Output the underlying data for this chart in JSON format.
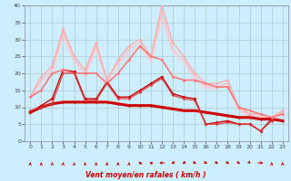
{
  "xlabel": "Vent moyen/en rafales ( km/h )",
  "xlabel_color": "#cc0000",
  "background_color": "#cceeff",
  "grid_color": "#aacccc",
  "xlim": [
    -0.5,
    23.5
  ],
  "ylim": [
    0,
    40
  ],
  "yticks": [
    0,
    5,
    10,
    15,
    20,
    25,
    30,
    35,
    40
  ],
  "xticks": [
    0,
    1,
    2,
    3,
    4,
    5,
    6,
    7,
    8,
    9,
    10,
    11,
    12,
    13,
    14,
    15,
    16,
    17,
    18,
    19,
    20,
    21,
    22,
    23
  ],
  "lines": [
    {
      "x": [
        0,
        1,
        2,
        3,
        4,
        5,
        6,
        7,
        8,
        9,
        10,
        11,
        12,
        13,
        14,
        15,
        16,
        17,
        18,
        19,
        20,
        21,
        22
      ],
      "y": [
        8.5,
        10.5,
        12.5,
        21,
        20.5,
        12.5,
        12.5,
        17.5,
        13,
        13,
        15,
        17,
        19,
        14,
        13,
        12.5,
        5,
        5.5,
        6,
        5,
        5,
        3,
        6.5
      ],
      "color": "#cc0000",
      "lw": 1.0,
      "marker": "D",
      "ms": 2.0,
      "alpha": 1.0
    },
    {
      "x": [
        0,
        1,
        2,
        3,
        4,
        5,
        6,
        7,
        8,
        9,
        10,
        11,
        12,
        13,
        14,
        15,
        16,
        17,
        18,
        19,
        20,
        21,
        22,
        23
      ],
      "y": [
        8.5,
        10.0,
        11.0,
        11.5,
        11.5,
        11.5,
        11.5,
        11.5,
        11.0,
        10.5,
        10.5,
        10.5,
        10.0,
        9.5,
        9.0,
        9.0,
        8.5,
        8.0,
        7.5,
        7.0,
        7.0,
        6.5,
        6.5,
        6.0
      ],
      "color": "#cc0000",
      "lw": 2.2,
      "marker": "D",
      "ms": 1.5,
      "alpha": 1.0
    },
    {
      "x": [
        0,
        1,
        2,
        3,
        4,
        5,
        6,
        7,
        8,
        9,
        10,
        11,
        12,
        13,
        14,
        15,
        16,
        17,
        18,
        19,
        20,
        21,
        22,
        23
      ],
      "y": [
        13,
        19,
        22,
        33,
        25,
        21,
        29,
        18,
        24,
        28,
        30,
        25,
        40,
        29,
        25,
        20,
        17,
        17,
        18,
        10,
        8,
        8,
        7,
        9
      ],
      "color": "#ffaaaa",
      "lw": 1.0,
      "marker": "D",
      "ms": 1.8,
      "alpha": 1.0
    },
    {
      "x": [
        0,
        1,
        2,
        3,
        4,
        5,
        6,
        7,
        8,
        9,
        10,
        11,
        12,
        13,
        14,
        15,
        16,
        17,
        18,
        19,
        20,
        21,
        22,
        23
      ],
      "y": [
        13,
        18,
        21,
        32,
        24,
        20,
        28,
        18,
        23,
        27,
        29,
        24,
        38,
        27,
        24,
        19,
        16,
        16,
        17,
        9.5,
        7.5,
        7.5,
        6.5,
        8.5
      ],
      "color": "#ffbbbb",
      "lw": 1.0,
      "marker": null,
      "ms": 0,
      "alpha": 0.85
    },
    {
      "x": [
        0,
        1,
        2,
        3,
        4,
        5,
        6,
        7,
        8,
        9,
        10,
        11,
        12,
        13,
        14,
        15,
        16,
        17,
        18,
        19,
        20,
        21,
        22,
        23
      ],
      "y": [
        13,
        17,
        20,
        31,
        23,
        19,
        27,
        17,
        22,
        26,
        28,
        23,
        36,
        26,
        23,
        18,
        15.5,
        15.5,
        16.5,
        9,
        7,
        7,
        6,
        8
      ],
      "color": "#ffcccc",
      "lw": 1.0,
      "marker": null,
      "ms": 0,
      "alpha": 0.75
    },
    {
      "x": [
        0,
        1,
        2,
        3,
        4,
        5,
        6,
        7,
        8,
        9,
        10,
        11,
        12,
        13,
        14,
        15,
        16,
        17,
        18,
        19,
        20,
        21,
        22,
        23
      ],
      "y": [
        13,
        15,
        20,
        21,
        20,
        20,
        20,
        17,
        20,
        24,
        28,
        25,
        24,
        19,
        18,
        18,
        17,
        16,
        16,
        10,
        9,
        8,
        7,
        8
      ],
      "color": "#ff7777",
      "lw": 1.1,
      "marker": "D",
      "ms": 1.8,
      "alpha": 1.0
    },
    {
      "x": [
        0,
        1,
        2,
        3,
        4,
        5,
        6,
        7,
        8,
        9,
        10,
        11,
        12,
        13,
        14,
        15,
        16,
        17,
        18,
        19,
        20,
        21,
        22,
        23
      ],
      "y": [
        13,
        15,
        20,
        21,
        20,
        20,
        20,
        17,
        20,
        24,
        28,
        25,
        24,
        19,
        18,
        18,
        17,
        16,
        16,
        10,
        9,
        8,
        7,
        8
      ],
      "color": "#ff9999",
      "lw": 1.0,
      "marker": null,
      "ms": 0,
      "alpha": 0.6
    },
    {
      "x": [
        0,
        1,
        2,
        3,
        4,
        5,
        6,
        7,
        8,
        9,
        10,
        11,
        12,
        13,
        14,
        15,
        16,
        17,
        18,
        19,
        20,
        21,
        22
      ],
      "y": [
        9,
        10,
        11,
        20,
        20,
        12,
        12,
        17,
        12.5,
        12.5,
        14.5,
        16.5,
        18.5,
        13.5,
        12.5,
        12,
        5,
        5,
        5.5,
        5,
        5,
        3,
        6
      ],
      "color": "#dd3333",
      "lw": 1.0,
      "marker": "D",
      "ms": 1.8,
      "alpha": 0.85
    }
  ],
  "arrow_directions": [
    180,
    180,
    180,
    180,
    180,
    180,
    180,
    180,
    180,
    180,
    225,
    225,
    270,
    315,
    315,
    45,
    45,
    45,
    45,
    45,
    30,
    90,
    180,
    180
  ],
  "arrow_color": "#cc0000"
}
